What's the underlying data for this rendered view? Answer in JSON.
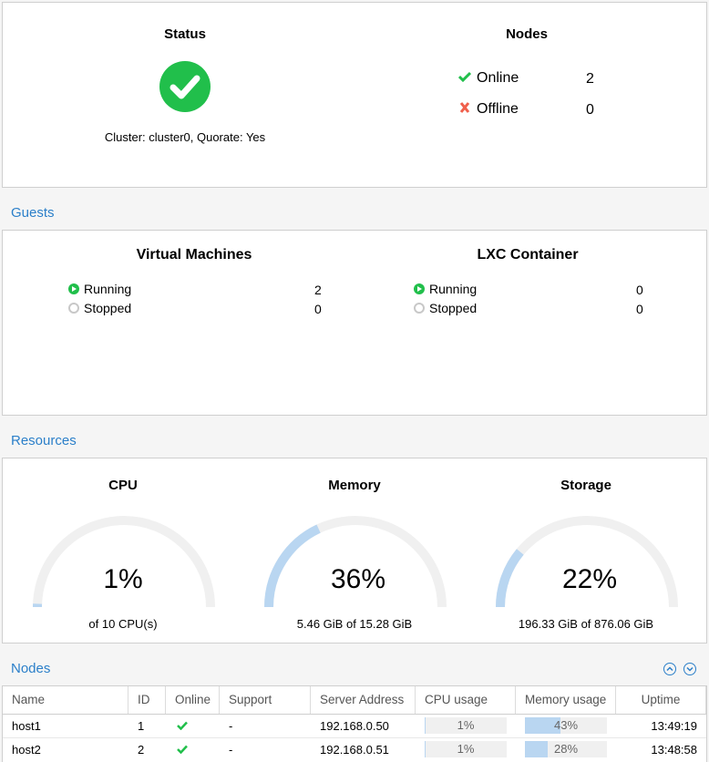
{
  "status": {
    "title": "Status",
    "cluster_text": "Cluster: cluster0, Quorate: Yes"
  },
  "nodes_summary": {
    "title": "Nodes",
    "online_label": "Online",
    "online_count": "2",
    "offline_label": "Offline",
    "offline_count": "0"
  },
  "guests": {
    "header": "Guests",
    "vm": {
      "title": "Virtual Machines",
      "running_label": "Running",
      "running_count": "2",
      "stopped_label": "Stopped",
      "stopped_count": "0"
    },
    "lxc": {
      "title": "LXC Container",
      "running_label": "Running",
      "running_count": "0",
      "stopped_label": "Stopped",
      "stopped_count": "0"
    }
  },
  "resources": {
    "header": "Resources",
    "cpu": {
      "title": "CPU",
      "value": "1%",
      "fraction": 0.01,
      "sub": "of 10 CPU(s)"
    },
    "memory": {
      "title": "Memory",
      "value": "36%",
      "fraction": 0.36,
      "sub": "5.46 GiB of 15.28 GiB"
    },
    "storage": {
      "title": "Storage",
      "value": "22%",
      "fraction": 0.22,
      "sub": "196.33 GiB of 876.06 GiB"
    }
  },
  "nodes_grid": {
    "header": "Nodes",
    "columns": [
      "Name",
      "ID",
      "Online",
      "Support",
      "Server Address",
      "CPU usage",
      "Memory usage",
      "Uptime"
    ],
    "rows": [
      {
        "name": "host1",
        "id": "1",
        "support": "-",
        "address": "192.168.0.50",
        "cpu": "1%",
        "cpu_frac": 0.01,
        "mem": "43%",
        "mem_frac": 0.43,
        "uptime": "13:49:19"
      },
      {
        "name": "host2",
        "id": "2",
        "support": "-",
        "address": "192.168.0.51",
        "cpu": "1%",
        "cpu_frac": 0.01,
        "mem": "28%",
        "mem_frac": 0.28,
        "uptime": "13:48:58"
      }
    ]
  },
  "colors": {
    "accent": "#2b7fc9",
    "ok": "#21bf4b",
    "error": "#f0604c",
    "gauge_fill": "#b9d6f1",
    "gauge_track": "#f0f0f0"
  }
}
